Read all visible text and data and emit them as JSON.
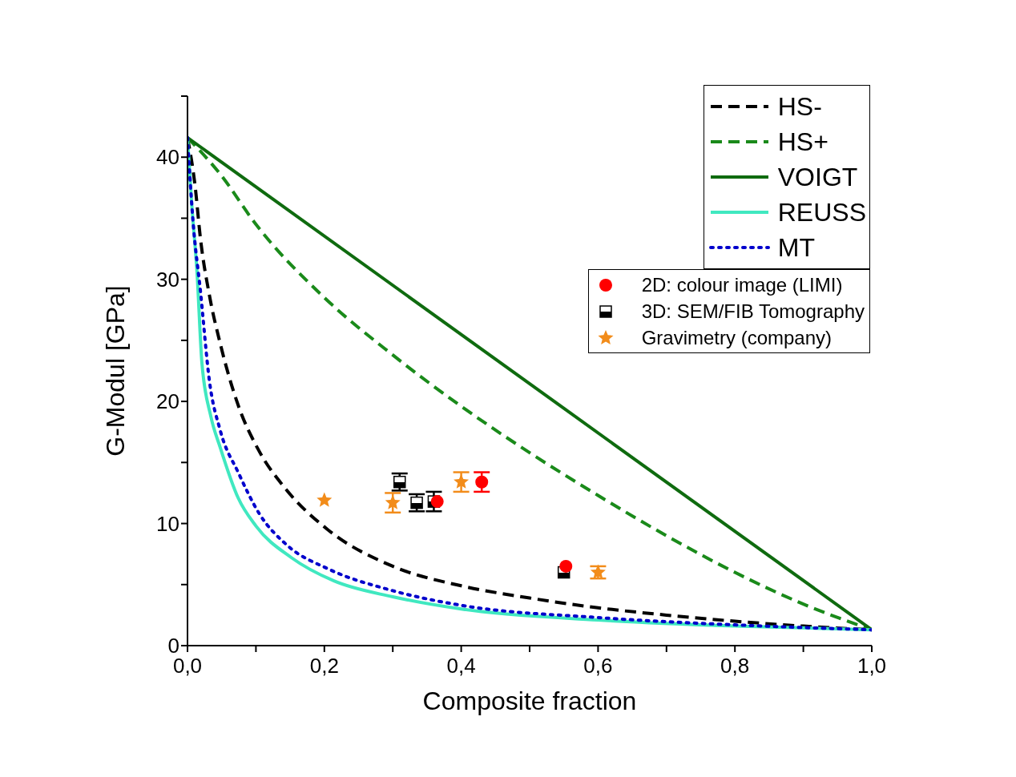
{
  "chart_data": {
    "type": "line",
    "xlabel": "Composite fraction",
    "ylabel": "G-Modul [GPa]",
    "xlim": [
      0,
      1
    ],
    "ylim": [
      0,
      45
    ],
    "xticks": [
      {
        "value": 0,
        "label": "0,0"
      },
      {
        "value": 0.1,
        "label": null
      },
      {
        "value": 0.2,
        "label": "0,2"
      },
      {
        "value": 0.3,
        "label": null
      },
      {
        "value": 0.4,
        "label": "0,4"
      },
      {
        "value": 0.5,
        "label": null
      },
      {
        "value": 0.6,
        "label": "0,6"
      },
      {
        "value": 0.7,
        "label": null
      },
      {
        "value": 0.8,
        "label": "0,8"
      },
      {
        "value": 0.9,
        "label": null
      },
      {
        "value": 1,
        "label": "1,0"
      }
    ],
    "yticks": [
      0,
      {
        "value": 5,
        "label": null
      },
      10,
      {
        "value": 15,
        "label": null
      },
      20,
      {
        "value": 25,
        "label": null
      },
      30,
      {
        "value": 35,
        "label": null
      },
      40,
      {
        "value": 45,
        "label": null
      }
    ],
    "grid": false,
    "legend": "top right",
    "marker": "none",
    "series": [
      {
        "name": "HS-",
        "color": "#000000",
        "line_style": "dashed",
        "x": [
          0,
          0.011,
          0.019,
          0.032,
          0.048,
          0.074,
          0.105,
          0.141,
          0.205,
          0.3,
          0.4,
          0.5,
          0.6,
          0.7,
          0.8,
          0.9,
          1
        ],
        "values": [
          41.6,
          37.7,
          33.3,
          28.7,
          24.7,
          19.7,
          15.9,
          13.0,
          9.5,
          6.5,
          4.9,
          3.9,
          3.1,
          2.5,
          2.0,
          1.6,
          1.3
        ]
      },
      {
        "name": "HS+",
        "color": "#1a8a1a",
        "line_style": "dashed",
        "x": [
          0,
          0.048,
          0.1,
          0.2,
          0.3,
          0.4,
          0.5,
          0.6,
          0.7,
          0.8,
          0.9,
          1
        ],
        "values": [
          41.6,
          38.6,
          34.5,
          28.5,
          23.8,
          19.6,
          15.8,
          12.3,
          9.0,
          6.0,
          3.4,
          1.3
        ]
      },
      {
        "name": "VOIGT",
        "color": "#0f6b0f",
        "line_style": "solid",
        "x": [
          0,
          1
        ],
        "values": [
          41.6,
          1.3
        ]
      },
      {
        "name": "REUSS",
        "color": "#40e8c0",
        "line_style": "solid",
        "x": [
          0,
          0.006,
          0.014,
          0.021,
          0.034,
          0.048,
          0.074,
          0.1,
          0.152,
          0.214,
          0.3,
          0.4,
          0.6,
          0.8,
          1
        ],
        "values": [
          41.6,
          36.3,
          30.5,
          23.2,
          18.8,
          16.2,
          12.1,
          9.8,
          7.2,
          5.3,
          4.0,
          3.0,
          2.1,
          1.6,
          1.3
        ]
      },
      {
        "name": "MT",
        "color": "#0000cc",
        "line_style": "dotted",
        "x": [
          0,
          0.008,
          0.019,
          0.032,
          0.048,
          0.074,
          0.105,
          0.146,
          0.205,
          0.3,
          0.4,
          0.6,
          0.8,
          1
        ],
        "values": [
          41.6,
          34.8,
          29.0,
          21.7,
          17.6,
          14.2,
          10.8,
          8.2,
          6.3,
          4.5,
          3.3,
          2.3,
          1.7,
          1.3
        ]
      },
      {
        "name": "2D: colour image (LIMI)",
        "type": "scatter",
        "marker": "circle",
        "color": "#ff0000",
        "x": [
          0.43,
          0.365,
          0.553
        ],
        "values": [
          13.4,
          11.8,
          6.5
        ],
        "errors": [
          0.8,
          null,
          null
        ]
      },
      {
        "name": "3D: SEM/FIB Tomography",
        "type": "scatter",
        "marker": "square",
        "color": "#000000",
        "x": [
          0.31,
          0.335,
          0.36,
          0.55
        ],
        "values": [
          13.4,
          11.7,
          11.8,
          6.0
        ],
        "errors": [
          0.7,
          0.7,
          0.8,
          null
        ]
      },
      {
        "name": "Gravimetry (company)",
        "type": "scatter",
        "marker": "star",
        "color": "#f28c1a",
        "x": [
          0.2,
          0.3,
          0.4,
          0.6
        ],
        "values": [
          11.9,
          11.7,
          13.4,
          6.0
        ],
        "errors": [
          null,
          0.8,
          0.8,
          0.5
        ]
      }
    ]
  }
}
